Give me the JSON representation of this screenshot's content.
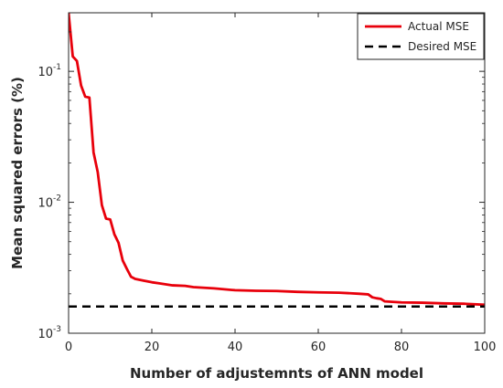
{
  "chart_data": {
    "type": "line",
    "xlabel": "Number of adjustemnts of ANN model",
    "ylabel": "Mean squared errors (%)",
    "xlim": [
      0,
      100
    ],
    "ylim": [
      0.001,
      0.28
    ],
    "yscale": "log",
    "grid": false,
    "legend_position": "top-right",
    "x_ticks": [
      0,
      20,
      40,
      60,
      80,
      100
    ],
    "x_tick_labels": [
      "0",
      "20",
      "40",
      "60",
      "80",
      "100"
    ],
    "y_ticks": [
      0.001,
      0.01,
      0.1
    ],
    "y_tick_labels": [
      {
        "base": "10",
        "exp": "-3"
      },
      {
        "base": "10",
        "exp": "-2"
      },
      {
        "base": "10",
        "exp": "-1"
      }
    ],
    "series": [
      {
        "name": "Actual MSE",
        "color": "#e8000b",
        "style": "solid",
        "x": [
          0,
          1,
          2,
          3,
          4,
          5,
          6,
          7,
          8,
          9,
          10,
          11,
          12,
          13,
          14,
          15,
          16,
          18,
          20,
          22,
          25,
          28,
          30,
          35,
          40,
          45,
          50,
          55,
          60,
          65,
          70,
          72,
          73,
          74,
          75,
          76,
          80,
          85,
          90,
          95,
          100
        ],
        "y": [
          0.28,
          0.13,
          0.12,
          0.078,
          0.064,
          0.063,
          0.024,
          0.017,
          0.0095,
          0.0075,
          0.0074,
          0.0057,
          0.0049,
          0.0036,
          0.0031,
          0.0027,
          0.0026,
          0.00252,
          0.00245,
          0.0024,
          0.00232,
          0.0023,
          0.00225,
          0.0022,
          0.00213,
          0.00211,
          0.0021,
          0.00207,
          0.00205,
          0.00204,
          0.002,
          0.00198,
          0.00188,
          0.00185,
          0.00183,
          0.00175,
          0.00172,
          0.00171,
          0.00169,
          0.00168,
          0.00165
        ]
      },
      {
        "name": "Desired MSE",
        "color": "#000000",
        "style": "dashed",
        "x": [
          0,
          100
        ],
        "y": [
          0.0016,
          0.0016
        ]
      }
    ]
  }
}
